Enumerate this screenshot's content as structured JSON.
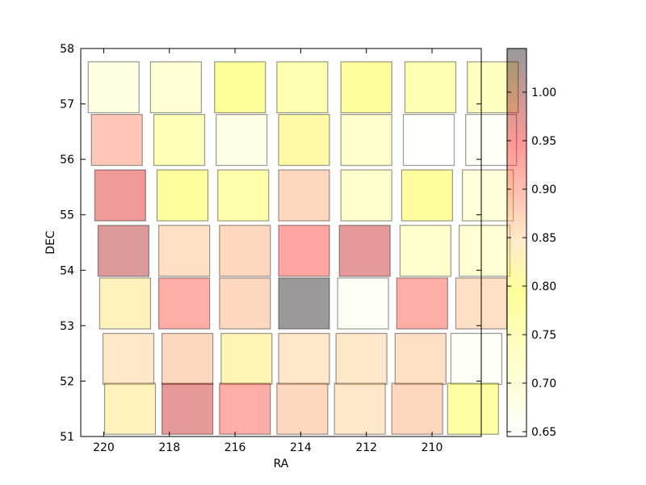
{
  "chart_data": {
    "type": "heatmap",
    "xlabel": "RA",
    "ylabel": "DEC",
    "xlim": [
      220.7,
      208.5
    ],
    "ylim": [
      51,
      58
    ],
    "x_ticks": [
      220,
      218,
      216,
      214,
      212,
      210
    ],
    "y_ticks": [
      51,
      52,
      53,
      54,
      55,
      56,
      57,
      58
    ],
    "colorbar": {
      "colormap": "hot_r",
      "alpha": 0.4,
      "range": [
        0.645,
        1.045
      ],
      "ticks": [
        "0.65",
        "0.70",
        "0.75",
        "0.80",
        "0.85",
        "0.90",
        "0.95",
        "1.00"
      ],
      "tick_values": [
        0.65,
        0.7,
        0.75,
        0.8,
        0.85,
        0.9,
        0.95,
        1.0
      ]
    },
    "rows": [
      {
        "dec": 57.3,
        "ra": [
          219.7,
          217.8,
          215.85,
          213.95,
          212.0,
          210.05,
          208.15
        ],
        "values": [
          0.69,
          0.71,
          0.79,
          0.76,
          0.8,
          0.76,
          0.74
        ]
      },
      {
        "dec": 56.35,
        "ra": [
          219.6,
          217.7,
          215.8,
          213.9,
          212.0,
          210.1,
          208.2
        ],
        "values": [
          0.89,
          0.75,
          0.68,
          0.81,
          0.72,
          0.65,
          0.66
        ]
      },
      {
        "dec": 55.35,
        "ra": [
          219.5,
          217.6,
          215.75,
          213.9,
          212.0,
          210.15,
          208.3
        ],
        "values": [
          0.96,
          0.8,
          0.77,
          0.87,
          0.72,
          0.8,
          0.7
        ]
      },
      {
        "dec": 54.35,
        "ra": [
          219.4,
          217.55,
          215.7,
          213.9,
          212.05,
          210.2,
          208.4
        ],
        "values": [
          0.98,
          0.86,
          0.87,
          0.93,
          0.97,
          0.72,
          0.71
        ]
      },
      {
        "dec": 53.4,
        "ra": [
          219.35,
          217.55,
          215.7,
          213.9,
          212.1,
          210.3,
          208.5
        ],
        "values": [
          0.83,
          0.92,
          0.87,
          1.04,
          0.66,
          0.92,
          0.86
        ]
      },
      {
        "dec": 52.4,
        "ra": [
          219.25,
          217.45,
          215.65,
          213.9,
          212.15,
          210.35,
          208.65
        ],
        "values": [
          0.85,
          0.87,
          0.82,
          0.85,
          0.85,
          0.86,
          0.66
        ]
      },
      {
        "dec": 51.5,
        "ra": [
          219.2,
          217.45,
          215.7,
          213.95,
          212.2,
          210.45,
          208.75
        ],
        "values": [
          0.83,
          0.97,
          0.92,
          0.87,
          0.85,
          0.87,
          0.78
        ]
      }
    ]
  }
}
